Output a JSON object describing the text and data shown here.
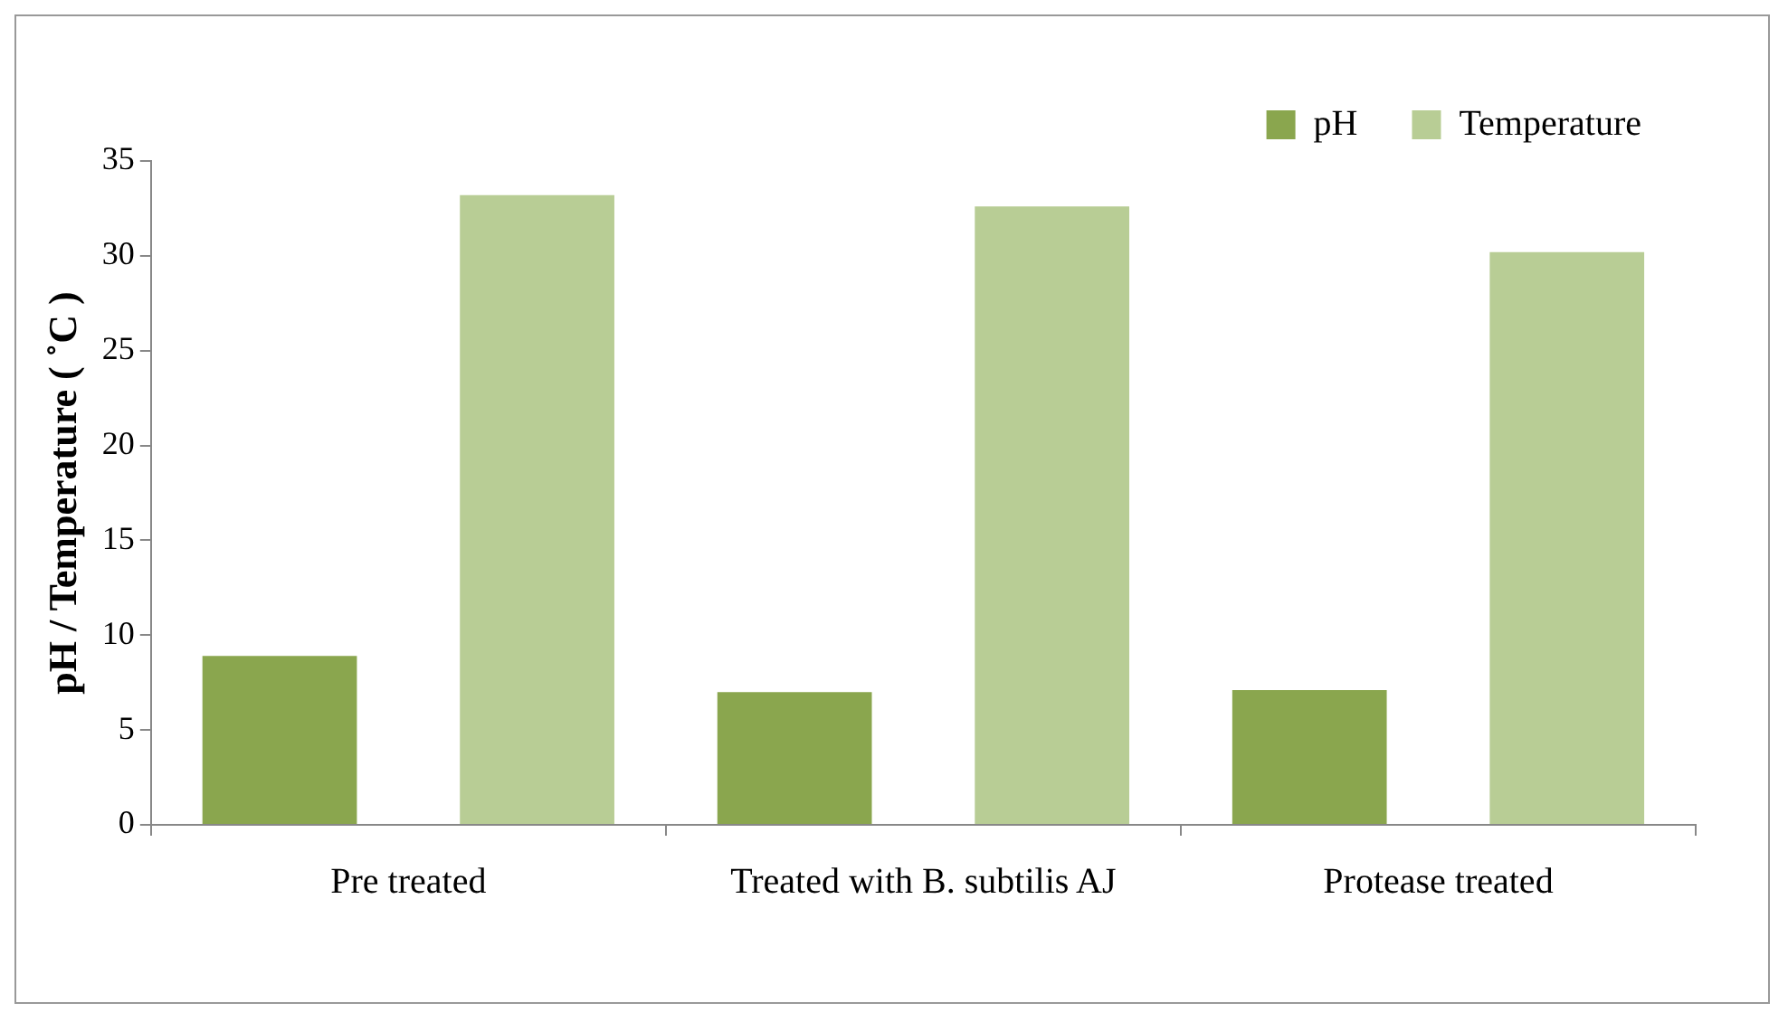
{
  "chart_data": {
    "type": "bar",
    "ylabel": "pH / Temperature ( ˚C )",
    "categories": [
      "Pre treated",
      "Treated with B. subtilis AJ",
      "Protease treated"
    ],
    "series": [
      {
        "name": "pH",
        "color": "#8aa64e",
        "values": [
          8.9,
          7.0,
          7.1
        ]
      },
      {
        "name": "Temperature",
        "color": "#b8cd95",
        "values": [
          33.2,
          32.6,
          30.2
        ]
      }
    ],
    "ylim": [
      0,
      35
    ],
    "yticks": [
      0,
      5,
      10,
      15,
      20,
      25,
      30,
      35
    ],
    "grid": false,
    "legend": "top right"
  }
}
